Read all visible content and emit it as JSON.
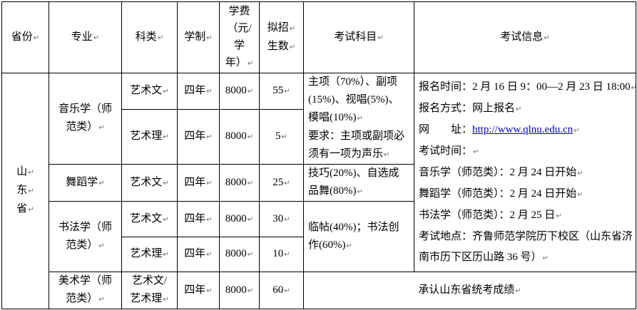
{
  "marks": {
    "paragraph": "↵"
  },
  "colors": {
    "border": "#000000",
    "text": "#000000",
    "link": "#0000ee",
    "mark": "#6a6a6a",
    "background": "#ffffff"
  },
  "table": {
    "header": {
      "province": [
        {
          "t": "省份",
          "m": 1
        }
      ],
      "major": [
        {
          "t": "专业",
          "m": 1
        }
      ],
      "category": [
        {
          "t": "科类",
          "m": 1
        }
      ],
      "duration": [
        {
          "t": "学制",
          "m": 1
        }
      ],
      "tuition": [
        {
          "t": "学费"
        },
        {
          "t": "（元/"
        },
        {
          "t": "学"
        },
        {
          "t": "年）",
          "m": 1
        }
      ],
      "quota": [
        {
          "t": "拟招",
          "m": 1
        },
        {
          "t": "生数",
          "m": 1
        }
      ],
      "subjects": [
        {
          "t": "考试科目",
          "m": 1
        }
      ],
      "info": [
        {
          "t": "考试信息",
          "m": 1
        }
      ]
    },
    "province": [
      {
        "t": "山",
        "m": 1
      },
      {
        "t": "东",
        "m": 1
      },
      {
        "t": "省",
        "m": 1
      }
    ],
    "majors": {
      "music": [
        {
          "t": "音乐学（师"
        },
        {
          "t": "范类）",
          "m": 1
        }
      ],
      "dance": [
        {
          "t": "舞蹈学",
          "m": 1
        }
      ],
      "calligraphy": [
        {
          "t": "书法学（师"
        },
        {
          "t": "范类）",
          "m": 1
        }
      ],
      "fine_art": [
        {
          "t": "美术学（师"
        },
        {
          "t": "范类）",
          "m": 1
        }
      ]
    },
    "categories": {
      "art_wen": [
        {
          "t": "艺术文",
          "m": 1
        }
      ],
      "art_li": [
        {
          "t": "艺术理",
          "m": 1
        }
      ],
      "art_mixed": [
        {
          "t": "艺术文/"
        },
        {
          "t": "艺术理",
          "m": 1
        }
      ]
    },
    "duration_value": [
      {
        "t": "四年",
        "m": 1
      }
    ],
    "tuition_value": [
      {
        "t": "8000",
        "m": 1
      }
    ],
    "quotas": {
      "music_wen": [
        {
          "t": "55",
          "m": 1
        }
      ],
      "music_li": [
        {
          "t": "5",
          "m": 1
        }
      ],
      "dance": [
        {
          "t": "25",
          "m": 1
        }
      ],
      "calligraphy_wen": [
        {
          "t": "30",
          "m": 1
        }
      ],
      "calligraphy_li": [
        {
          "t": "10",
          "m": 1
        }
      ],
      "fine_art": [
        {
          "t": "60",
          "m": 1
        }
      ]
    },
    "subjects": {
      "music": [
        {
          "t": "主项（70%）、副项"
        },
        {
          "t": "(15%)、视唱(5%)、"
        },
        {
          "t": "模唱(10%)",
          "m": 1
        },
        {
          "t": "要求：主项或副项必"
        },
        {
          "t": "须有一项为声乐",
          "m": 1
        }
      ],
      "dance": [
        {
          "t": "技巧(20%)、自选成"
        },
        {
          "t": "品舞(80%)",
          "m": 1
        }
      ],
      "calligraphy": [
        {
          "t": "临帖(40%)；书法创"
        },
        {
          "t": "作(60%)",
          "m": 1
        }
      ]
    },
    "info": [
      {
        "t": "报名时间：2 月 16 日 9：00—2 月 23 日 18:00",
        "m": 1
      },
      {
        "t": "报名方式：网上报名",
        "m": 1
      },
      {
        "t": "网　　址：",
        "link": "http://www.qlnu.edu.cn",
        "m": 1
      },
      {
        "t": "考试时间：",
        "m": 1
      },
      {
        "t": "音乐学（师范类）：2 月 24 日开始",
        "m": 1
      },
      {
        "t": "舞蹈学（师范类）：2 月 24 日开始",
        "m": 1
      },
      {
        "t": "书法学（师范类）：2 月 25 日",
        "m": 1
      },
      {
        "t": "考试地点：齐鲁师范学院历下校区（山东省济"
      },
      {
        "t": "南市历下区历山路 36 号）",
        "m": 1
      }
    ],
    "fine_art_note": [
      {
        "t": "承认山东省统考成绩",
        "m": 1
      }
    ]
  }
}
